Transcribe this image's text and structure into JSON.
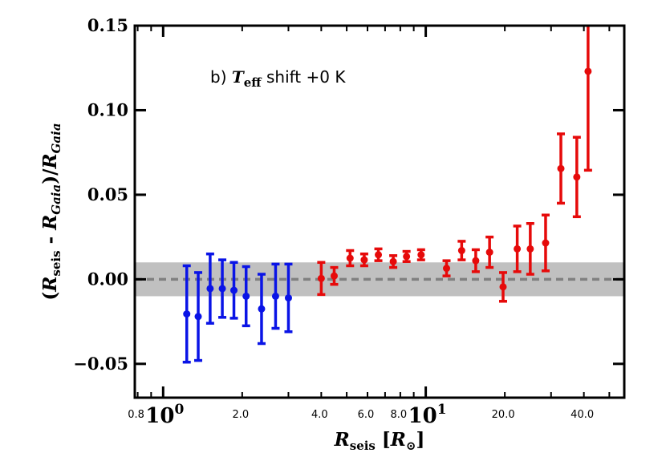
{
  "chart_data": {
    "type": "scatter",
    "title": "",
    "xscale": "log",
    "xlim": [
      0.78,
      57
    ],
    "ylim": [
      -0.07,
      0.15
    ],
    "annotation": {
      "prefix": "b) ",
      "var_main": "T",
      "var_sub": "eff",
      "suffix": " shift +0 K"
    },
    "xlabel": {
      "main": "R",
      "sub": "seis",
      "bracket_open": " [",
      "unit_main": "R",
      "unit_sub": "⊙",
      "bracket_close": "]"
    },
    "ylabel": {
      "open": "(",
      "r1_main": "R",
      "r1_sub": "seis",
      "minus": " - ",
      "r2_main": "R",
      "r2_sub": "Gaia",
      "close_div": ")/",
      "r3_main": "R",
      "r3_sub": "Gaia"
    },
    "y_ticks": [
      {
        "value": -0.05,
        "label": "−0.05"
      },
      {
        "value": 0.0,
        "label": "0.00"
      },
      {
        "value": 0.05,
        "label": "0.05"
      },
      {
        "value": 0.1,
        "label": "0.10"
      },
      {
        "value": 0.15,
        "label": "0.15"
      }
    ],
    "x_major_ticks": [
      {
        "value": 1,
        "base": "10",
        "exp": "0"
      },
      {
        "value": 10,
        "base": "10",
        "exp": "1"
      }
    ],
    "x_minor_labels": [
      {
        "value": 0.8,
        "label": "0.8"
      },
      {
        "value": 2,
        "label": "2.0"
      },
      {
        "value": 4,
        "label": "4.0"
      },
      {
        "value": 6,
        "label": "6.0"
      },
      {
        "value": 8,
        "label": "8.0"
      },
      {
        "value": 20,
        "label": "20.0"
      },
      {
        "value": 40,
        "label": "40.0"
      }
    ],
    "x_minor_ticks": [
      0.8,
      0.9,
      2,
      3,
      4,
      5,
      6,
      7,
      8,
      9,
      20,
      30,
      40,
      50
    ],
    "shaded_band": [
      -0.01,
      0.01
    ],
    "reference_line": 0.0,
    "colors": {
      "blue": "#0a14e6",
      "red": "#e60a0a",
      "band": "#c0c0c0",
      "dash": "#808080"
    },
    "series": [
      {
        "color": "blue",
        "points": [
          {
            "x": 1.23,
            "y": -0.0205,
            "err": 0.0285
          },
          {
            "x": 1.36,
            "y": -0.022,
            "err": 0.026
          },
          {
            "x": 1.51,
            "y": -0.0055,
            "err": 0.0205
          },
          {
            "x": 1.68,
            "y": -0.0055,
            "err": 0.017
          },
          {
            "x": 1.86,
            "y": -0.0065,
            "err": 0.0165
          },
          {
            "x": 2.07,
            "y": -0.01,
            "err": 0.0175
          },
          {
            "x": 2.37,
            "y": -0.0175,
            "err": 0.0205
          },
          {
            "x": 2.68,
            "y": -0.01,
            "err": 0.019
          },
          {
            "x": 3.0,
            "y": -0.011,
            "err": 0.02
          }
        ]
      },
      {
        "color": "red",
        "points": [
          {
            "x": 4.0,
            "y": 0.0005,
            "err": 0.0095
          },
          {
            "x": 4.48,
            "y": 0.002,
            "err": 0.005
          },
          {
            "x": 5.15,
            "y": 0.0125,
            "err": 0.0045
          },
          {
            "x": 5.83,
            "y": 0.0115,
            "err": 0.0035
          },
          {
            "x": 6.6,
            "y": 0.0145,
            "err": 0.0035
          },
          {
            "x": 7.52,
            "y": 0.0105,
            "err": 0.0035
          },
          {
            "x": 8.45,
            "y": 0.0135,
            "err": 0.003
          },
          {
            "x": 9.6,
            "y": 0.0145,
            "err": 0.003
          },
          {
            "x": 12.0,
            "y": 0.0065,
            "err": 0.0045
          },
          {
            "x": 13.7,
            "y": 0.017,
            "err": 0.0055
          },
          {
            "x": 15.5,
            "y": 0.011,
            "err": 0.0065
          },
          {
            "x": 17.5,
            "y": 0.016,
            "err": 0.009
          },
          {
            "x": 19.7,
            "y": -0.0045,
            "err": 0.0085
          },
          {
            "x": 22.3,
            "y": 0.018,
            "err": 0.0135
          },
          {
            "x": 25.0,
            "y": 0.018,
            "err": 0.015
          },
          {
            "x": 28.6,
            "y": 0.0215,
            "err": 0.0165
          },
          {
            "x": 32.7,
            "y": 0.0655,
            "err": 0.0205
          },
          {
            "x": 37.6,
            "y": 0.0605,
            "err": 0.0235
          },
          {
            "x": 41.5,
            "y": 0.123,
            "err": 0.0585
          }
        ]
      }
    ]
  }
}
